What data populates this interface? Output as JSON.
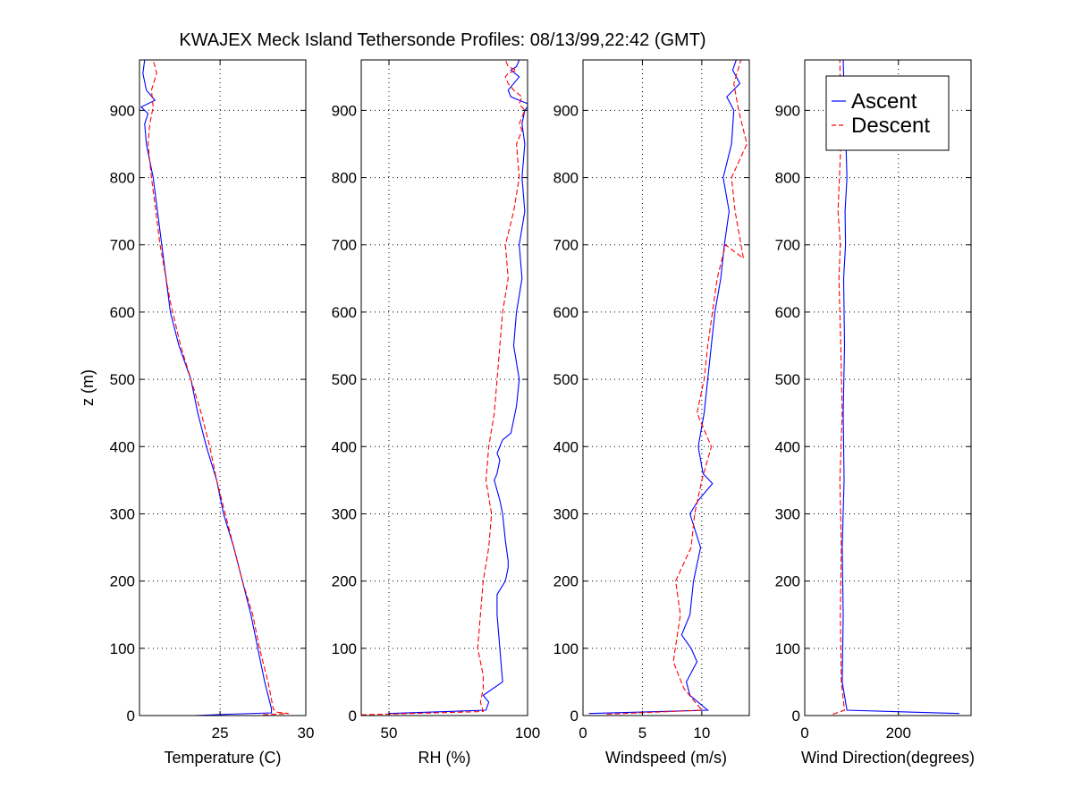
{
  "figure": {
    "title": "KWAJEX Meck Island Tethersonde Profiles: 08/13/99,22:42 (GMT)",
    "background": "#ffffff",
    "axis_color": "#000000",
    "grid_color": "#000000"
  },
  "legend": {
    "placement": "top-right of fourth panel",
    "entries": [
      {
        "label": "Ascent",
        "color": "#0000ff",
        "dash": "solid"
      },
      {
        "label": "Descent",
        "color": "#ff0000",
        "dash": "dashed"
      }
    ]
  },
  "chart_data": [
    {
      "type": "line",
      "xlabel": "Temperature (C)",
      "ylabel": "z (m)",
      "xlim": [
        20.3,
        30
      ],
      "ylim": [
        0,
        975
      ],
      "xticks": [
        25,
        30
      ],
      "xtick_labels": [
        "25",
        "30"
      ],
      "yticks": [
        0,
        100,
        200,
        300,
        400,
        500,
        600,
        700,
        800,
        900
      ],
      "ytick_labels": [
        "0",
        "100",
        "200",
        "300",
        "400",
        "500",
        "600",
        "700",
        "800",
        "900"
      ],
      "grid": true,
      "series": [
        {
          "name": "Ascent",
          "color": "#0000ff",
          "dash": "solid",
          "x": [
            23.5,
            25.5,
            28.0,
            28.0,
            27.6,
            27.2,
            26.8,
            26.3,
            25.8,
            25.2,
            24.8,
            24.2,
            23.7,
            23.3,
            22.6,
            22.1,
            21.6,
            21.1,
            20.7,
            20.6,
            20.8,
            20.4,
            21.2,
            20.7,
            20.5,
            20.6
          ],
          "y": [
            0,
            2,
            4,
            10,
            50,
            100,
            150,
            200,
            250,
            300,
            350,
            400,
            450,
            500,
            550,
            600,
            700,
            800,
            850,
            880,
            895,
            905,
            915,
            930,
            955,
            975
          ]
        },
        {
          "name": "Descent",
          "color": "#ff0000",
          "dash": "dashed",
          "x": [
            27.5,
            29.0,
            28.3,
            28.1,
            27.8,
            27.3,
            26.9,
            26.3,
            25.8,
            25.3,
            24.8,
            24.4,
            23.9,
            23.3,
            22.7,
            22.1,
            21.5,
            21.0,
            20.8,
            20.9,
            21.1,
            21.0,
            21.3,
            21.1
          ],
          "y": [
            1,
            3,
            5,
            10,
            50,
            100,
            150,
            200,
            250,
            300,
            350,
            400,
            450,
            500,
            550,
            615,
            700,
            800,
            850,
            880,
            905,
            930,
            955,
            975
          ]
        }
      ]
    },
    {
      "type": "line",
      "xlabel": "RH (%)",
      "ylabel": "",
      "xlim": [
        40,
        100
      ],
      "ylim": [
        0,
        975
      ],
      "xticks": [
        50,
        100
      ],
      "xtick_labels": [
        "50",
        "100"
      ],
      "yticks": [
        0,
        100,
        200,
        300,
        400,
        500,
        600,
        700,
        800,
        900
      ],
      "ytick_labels": [
        "0",
        "100",
        "200",
        "300",
        "400",
        "500",
        "600",
        "700",
        "800",
        "900"
      ],
      "grid": true,
      "series": [
        {
          "name": "Ascent",
          "color": "#0000ff",
          "dash": "solid",
          "x": [
            50,
            85,
            86,
            84,
            91,
            90,
            89,
            89,
            92,
            93,
            93,
            92,
            91,
            90,
            88,
            89,
            90,
            89,
            91,
            94,
            96,
            97,
            95,
            96,
            98,
            97,
            99,
            98,
            99,
            98,
            99,
            100,
            100,
            97,
            94,
            93,
            97,
            94,
            96,
            97
          ],
          "y": [
            3,
            8,
            20,
            30,
            50,
            100,
            150,
            180,
            200,
            220,
            230,
            260,
            300,
            320,
            350,
            360,
            380,
            390,
            410,
            420,
            460,
            500,
            550,
            600,
            650,
            700,
            750,
            800,
            850,
            880,
            900,
            905,
            910,
            915,
            920,
            930,
            950,
            960,
            965,
            975
          ]
        },
        {
          "name": "Descent",
          "color": "#ff0000",
          "dash": "dashed",
          "x": [
            40,
            84,
            83,
            84,
            84,
            82,
            83,
            84,
            86,
            87,
            85,
            86,
            88,
            89,
            90,
            91,
            93,
            92,
            95,
            97,
            96,
            98,
            97,
            98,
            99,
            97,
            98,
            95,
            93,
            92,
            93,
            96,
            93,
            92
          ],
          "y": [
            1,
            6,
            20,
            40,
            60,
            100,
            150,
            200,
            250,
            300,
            350,
            400,
            450,
            500,
            550,
            600,
            650,
            700,
            750,
            800,
            850,
            870,
            880,
            890,
            900,
            910,
            920,
            930,
            940,
            950,
            955,
            960,
            965,
            975
          ]
        }
      ]
    },
    {
      "type": "line",
      "xlabel": "Windspeed (m/s)",
      "ylabel": "",
      "xlim": [
        0,
        14
      ],
      "ylim": [
        0,
        975
      ],
      "xticks": [
        0,
        5,
        10
      ],
      "xtick_labels": [
        "0",
        "5",
        "10"
      ],
      "yticks": [
        0,
        100,
        200,
        300,
        400,
        500,
        600,
        700,
        800,
        900
      ],
      "ytick_labels": [
        "0",
        "100",
        "200",
        "300",
        "400",
        "500",
        "600",
        "700",
        "800",
        "900"
      ],
      "grid": true,
      "series": [
        {
          "name": "Ascent",
          "color": "#0000ff",
          "dash": "solid",
          "x": [
            0.5,
            10.5,
            9.0,
            8.7,
            9.6,
            9.1,
            8.3,
            9.0,
            9.3,
            9.9,
            9.0,
            9.7,
            10.9,
            10.1,
            9.7,
            10.2,
            10.5,
            10.8,
            11.1,
            11.6,
            11.9,
            12.3,
            11.8,
            12.5,
            12.7,
            12.1,
            13.2,
            12.6,
            12.9
          ],
          "y": [
            3,
            8,
            30,
            50,
            80,
            100,
            120,
            150,
            200,
            250,
            300,
            320,
            345,
            360,
            400,
            450,
            500,
            550,
            600,
            650,
            700,
            750,
            800,
            850,
            900,
            920,
            940,
            960,
            975
          ]
        },
        {
          "name": "Descent",
          "color": "#ff0000",
          "dash": "dashed",
          "x": [
            2.0,
            10.0,
            8.5,
            7.6,
            8.2,
            7.8,
            9.1,
            9.4,
            10.0,
            10.8,
            9.6,
            10.2,
            10.5,
            10.9,
            11.3,
            12.0,
            13.5,
            12.8,
            12.5,
            13.8,
            13.1,
            12.7,
            13.3
          ],
          "y": [
            2,
            8,
            40,
            80,
            150,
            200,
            250,
            300,
            350,
            400,
            450,
            500,
            550,
            600,
            650,
            700,
            680,
            750,
            800,
            850,
            900,
            940,
            975
          ]
        }
      ]
    },
    {
      "type": "line",
      "xlabel": "Wind Direction(degrees)",
      "ylabel": "",
      "xlim": [
        0,
        355
      ],
      "ylim": [
        0,
        975
      ],
      "xticks": [
        0,
        200
      ],
      "xtick_labels": [
        "0",
        "200"
      ],
      "yticks": [
        0,
        100,
        200,
        300,
        400,
        500,
        600,
        700,
        800,
        900
      ],
      "ytick_labels": [
        "0",
        "100",
        "200",
        "300",
        "400",
        "500",
        "600",
        "700",
        "800",
        "900"
      ],
      "grid": true,
      "series": [
        {
          "name": "Ascent",
          "color": "#0000ff",
          "dash": "solid",
          "x": [
            330,
            90,
            80,
            82,
            80,
            84,
            82,
            85,
            83,
            87,
            86,
            90,
            88,
            85,
            82
          ],
          "y": [
            3,
            8,
            50,
            150,
            250,
            350,
            450,
            550,
            650,
            700,
            750,
            800,
            850,
            900,
            975
          ]
        },
        {
          "name": "Descent",
          "color": "#ff0000",
          "dash": "dashed",
          "x": [
            60,
            85,
            78,
            76,
            78,
            75,
            80,
            77,
            73,
            76,
            71,
            74,
            77,
            75
          ],
          "y": [
            2,
            8,
            50,
            150,
            250,
            350,
            450,
            550,
            650,
            700,
            750,
            800,
            850,
            975
          ]
        }
      ]
    }
  ]
}
